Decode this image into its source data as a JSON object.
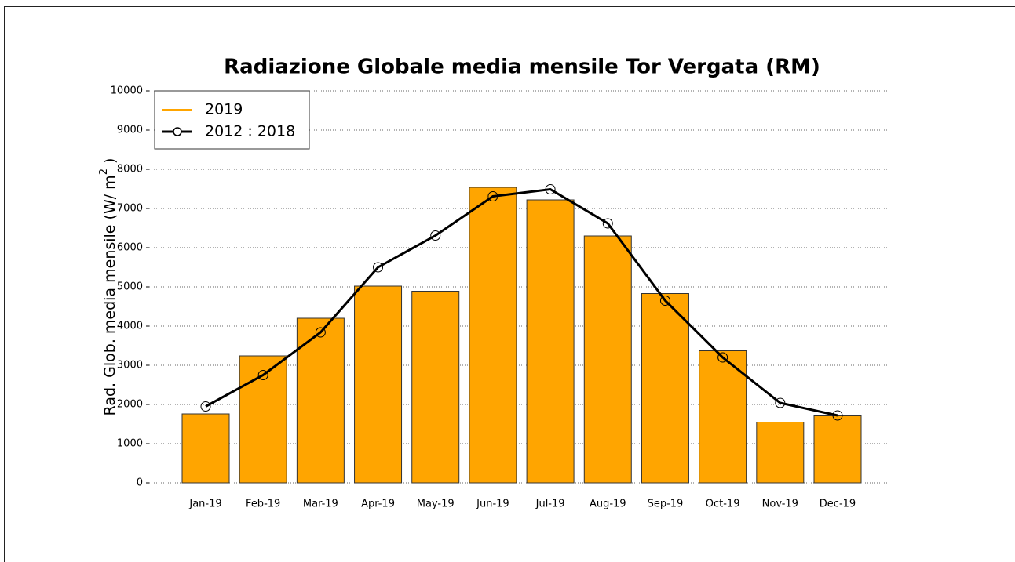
{
  "chart_data": {
    "type": "bar",
    "title": "Radiazione Globale media mensile Tor Vergata (RM)",
    "ylabel_parts": [
      "Rad. Glob. media mensile (W/ m",
      "2",
      " )"
    ],
    "categories": [
      "Jan-19",
      "Feb-19",
      "Mar-19",
      "Apr-19",
      "May-19",
      "Jun-19",
      "Jul-19",
      "Aug-19",
      "Sep-19",
      "Oct-19",
      "Nov-19",
      "Dec-19"
    ],
    "series": [
      {
        "name": "2019",
        "type": "bar",
        "color": "#ffa500",
        "values": [
          1760,
          3240,
          4200,
          5020,
          4890,
          7540,
          7220,
          6300,
          4830,
          3370,
          1550,
          1710
        ]
      },
      {
        "name": "2012 : 2018",
        "type": "line",
        "color": "#000000",
        "values": [
          1950,
          2750,
          3840,
          5500,
          6310,
          7310,
          7490,
          6620,
          4650,
          3200,
          2040,
          1720
        ]
      }
    ],
    "ylim": [
      0,
      10000
    ],
    "yticks": [
      0,
      1000,
      2000,
      3000,
      4000,
      5000,
      6000,
      7000,
      8000,
      9000,
      10000
    ],
    "grid": true,
    "legend": "upper left"
  }
}
